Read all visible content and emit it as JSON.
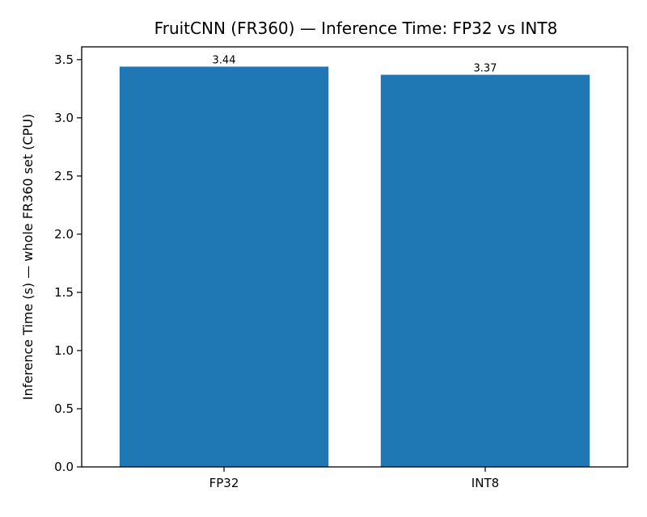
{
  "chart_data": {
    "type": "bar",
    "title": "FruitCNN (FR360) — Inference Time: FP32 vs INT8",
    "xlabel": "",
    "ylabel": "Inference Time (s) — whole FR360 set (CPU)",
    "categories": [
      "FP32",
      "INT8"
    ],
    "values": [
      3.44,
      3.37
    ],
    "value_labels": [
      "3.44",
      "3.37"
    ],
    "ylim": [
      0,
      3.61
    ],
    "yticks": [
      0.0,
      0.5,
      1.0,
      1.5,
      2.0,
      2.5,
      3.0,
      3.5
    ],
    "ytick_labels": [
      "0.0",
      "0.5",
      "1.0",
      "1.5",
      "2.0",
      "2.5",
      "3.0",
      "3.5"
    ],
    "grid": false,
    "legend": "none",
    "bar_color": "#1f77b4"
  }
}
